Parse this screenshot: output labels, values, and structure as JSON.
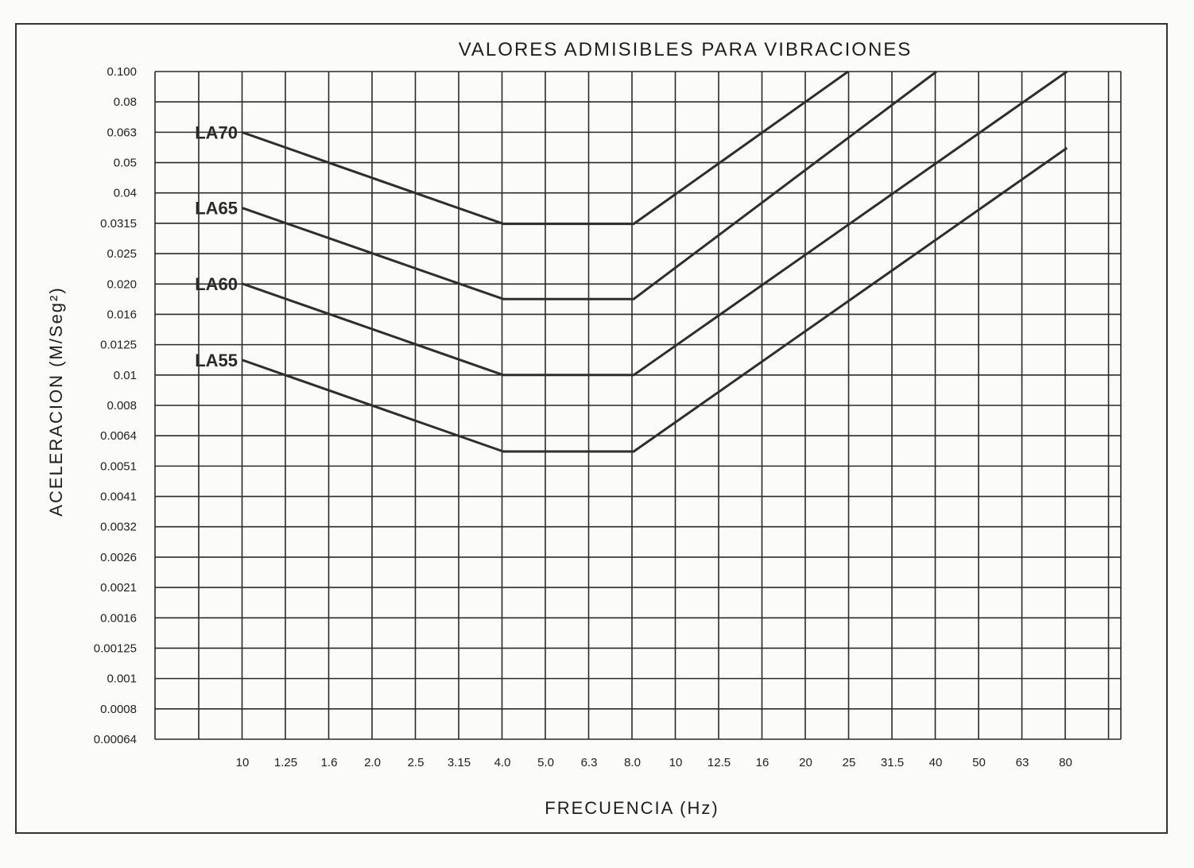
{
  "chart_data": {
    "type": "line",
    "title": "VALORES  ADMISIBLES  PARA  VIBRACIONES",
    "xlabel": "FRECUENCIA  (Hz)",
    "ylabel": "ACELERACION  (M/Seg²)",
    "x_scale": "log (1/3 octave bands)",
    "y_scale": "log (1/10 decade)",
    "x_tick_labels": [
      "10",
      "1.25",
      "1.6",
      "2.0",
      "2.5",
      "3.15",
      "4.0",
      "5.0",
      "6.3",
      "8.0",
      "10",
      "12.5",
      "16",
      "20",
      "25",
      "31.5",
      "40",
      "50",
      "63",
      "80"
    ],
    "y_tick_labels": [
      "0.100",
      "0.08",
      "0.063",
      "0.05",
      "0.04",
      "0.0315",
      "0.025",
      "0.020",
      "0.016",
      "0.0125",
      "0.01",
      "0.008",
      "0.0064",
      "0.0051",
      "0.0041",
      "0.0032",
      "0.0026",
      "0.0021",
      "0.0016",
      "0.00125",
      "0.001",
      "0.0008",
      "0.00064"
    ],
    "ylim": [
      0.00064,
      0.1
    ],
    "grid": true,
    "series": [
      {
        "name": "LA70",
        "points": [
          [
            1.0,
            0.063
          ],
          [
            4.0,
            0.0315
          ],
          [
            8.0,
            0.0315
          ],
          [
            25,
            0.1
          ]
        ]
      },
      {
        "name": "LA65",
        "points": [
          [
            1.0,
            0.0355
          ],
          [
            4.0,
            0.0178
          ],
          [
            8.0,
            0.0178
          ],
          [
            40,
            0.1
          ]
        ]
      },
      {
        "name": "LA60",
        "points": [
          [
            1.0,
            0.02
          ],
          [
            4.0,
            0.01
          ],
          [
            8.0,
            0.01
          ],
          [
            80,
            0.1
          ]
        ]
      },
      {
        "name": "LA55",
        "points": [
          [
            1.0,
            0.0112
          ],
          [
            4.0,
            0.0056
          ],
          [
            8.0,
            0.0056
          ],
          [
            80,
            0.056
          ]
        ]
      }
    ]
  }
}
